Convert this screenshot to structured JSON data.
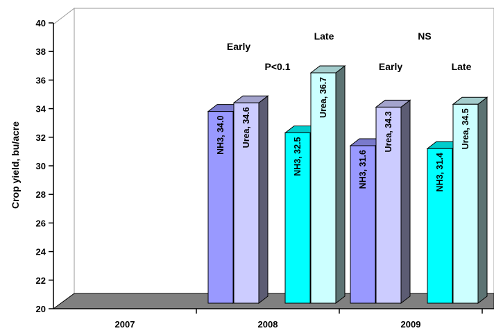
{
  "chart_data": {
    "type": "bar",
    "title": "",
    "xlabel": "",
    "ylabel": "Crop yield, bu/acre",
    "ylim": [
      20,
      40
    ],
    "yticks": [
      20,
      22,
      24,
      26,
      28,
      30,
      32,
      34,
      36,
      38,
      40
    ],
    "years": [
      "2007",
      "2008",
      "2009"
    ],
    "bars": [
      {
        "year": "2008",
        "timing": "Early",
        "source": "NH3",
        "value": 34.0,
        "label": "NH3, 34.0",
        "color": "#9999ff"
      },
      {
        "year": "2008",
        "timing": "Early",
        "source": "Urea",
        "value": 34.6,
        "label": "Urea, 34.6",
        "color": "#ccccff"
      },
      {
        "year": "2008",
        "timing": "Late",
        "source": "NH3",
        "value": 32.5,
        "label": "NH3, 32.5",
        "color": "#00ffff"
      },
      {
        "year": "2008",
        "timing": "Late",
        "source": "Urea",
        "value": 36.7,
        "label": "Urea, 36.7",
        "color": "#ccffff"
      },
      {
        "year": "2009",
        "timing": "Early",
        "source": "NH3",
        "value": 31.6,
        "label": "NH3, 31.6",
        "color": "#9999ff"
      },
      {
        "year": "2009",
        "timing": "Early",
        "source": "Urea",
        "value": 34.3,
        "label": "Urea, 34.3",
        "color": "#ccccff"
      },
      {
        "year": "2009",
        "timing": "Late",
        "source": "NH3",
        "value": 31.4,
        "label": "NH3, 31.4",
        "color": "#00ffff"
      },
      {
        "year": "2009",
        "timing": "Late",
        "source": "Urea",
        "value": 34.5,
        "label": "Urea, 34.5",
        "color": "#ccffff"
      }
    ],
    "annotations": [
      "Early",
      "Late",
      "P<0.1",
      "NS",
      "Early",
      "Late"
    ],
    "grid": false,
    "legend": "none"
  }
}
